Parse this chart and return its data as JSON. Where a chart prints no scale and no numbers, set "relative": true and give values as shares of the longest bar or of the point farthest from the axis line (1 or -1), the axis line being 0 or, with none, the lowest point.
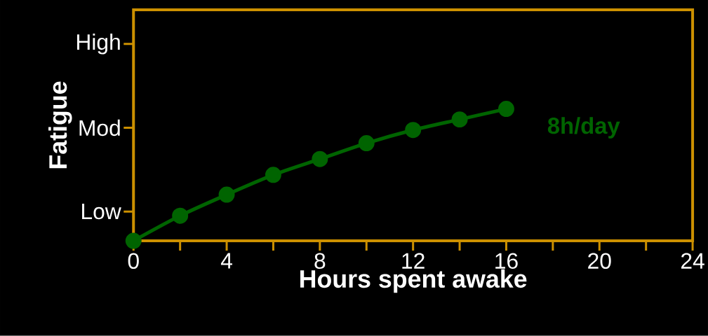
{
  "chart_data": {
    "type": "line",
    "relative": true,
    "xlabel": "Hours spent awake",
    "ylabel": "Fatigue",
    "x": [
      0,
      2,
      4,
      6,
      8,
      10,
      12,
      14,
      16
    ],
    "series": [
      {
        "name": "8h/day",
        "color": "#006400",
        "values": [
          0,
          0.19,
          0.35,
          0.5,
          0.62,
          0.74,
          0.84,
          0.92,
          1
        ]
      }
    ],
    "annotations": [
      "Low",
      "Mod",
      "High"
    ],
    "xlim": [
      0,
      24
    ],
    "xticks": [
      0,
      {
        "value": 2,
        "label": null
      },
      4,
      {
        "value": 6,
        "label": null
      },
      8,
      {
        "value": 10,
        "label": null
      },
      12,
      {
        "value": 14,
        "label": null
      },
      16,
      {
        "value": 18,
        "label": null
      },
      20,
      {
        "value": 22,
        "label": null
      },
      24
    ],
    "marker": "circle",
    "line_style": "solid",
    "grid": false
  }
}
